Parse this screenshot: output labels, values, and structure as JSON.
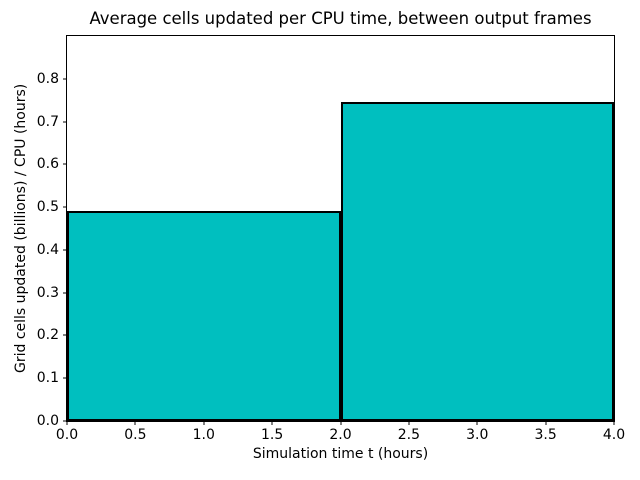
{
  "chart_data": {
    "type": "bar",
    "title": "Average cells updated per CPU time, between output frames",
    "xlabel": "Simulation time t (hours)",
    "ylabel": "Grid cells updated (billions) / CPU (hours)",
    "xlim": [
      0.0,
      4.0
    ],
    "ylim": [
      0.0,
      0.9
    ],
    "grid": false,
    "legend": null,
    "bar_color": "#00bfbf",
    "bar_edge_color": "#000000",
    "bars": [
      {
        "x0": 0.0,
        "x1": 2.0,
        "value": 0.49
      },
      {
        "x0": 2.0,
        "x1": 4.0,
        "value": 0.745
      }
    ],
    "xticks": [
      {
        "v": 0.0,
        "label": "0.0"
      },
      {
        "v": 0.5,
        "label": "0.5"
      },
      {
        "v": 1.0,
        "label": "1.0"
      },
      {
        "v": 1.5,
        "label": "1.5"
      },
      {
        "v": 2.0,
        "label": "2.0"
      },
      {
        "v": 2.5,
        "label": "2.5"
      },
      {
        "v": 3.0,
        "label": "3.0"
      },
      {
        "v": 3.5,
        "label": "3.5"
      },
      {
        "v": 4.0,
        "label": "4.0"
      }
    ],
    "yticks": [
      {
        "v": 0.0,
        "label": "0.0"
      },
      {
        "v": 0.1,
        "label": "0.1"
      },
      {
        "v": 0.2,
        "label": "0.2"
      },
      {
        "v": 0.3,
        "label": "0.3"
      },
      {
        "v": 0.4,
        "label": "0.4"
      },
      {
        "v": 0.5,
        "label": "0.5"
      },
      {
        "v": 0.6,
        "label": "0.6"
      },
      {
        "v": 0.7,
        "label": "0.7"
      },
      {
        "v": 0.8,
        "label": "0.8"
      }
    ]
  }
}
